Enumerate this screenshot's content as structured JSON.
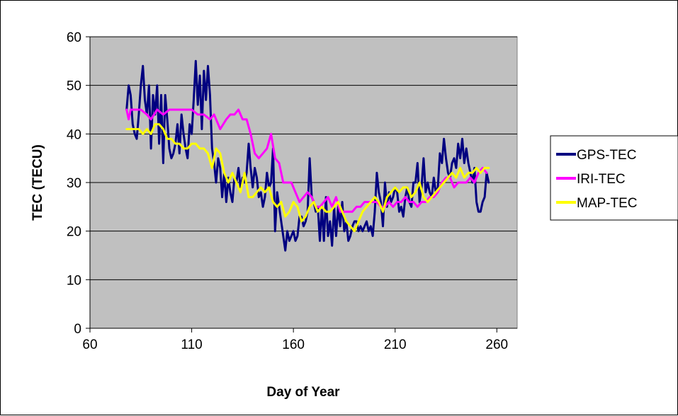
{
  "chart_data": {
    "type": "line",
    "title": "",
    "xlabel": "Day of Year",
    "ylabel": "TEC (TECU)",
    "xlim": [
      60,
      270
    ],
    "ylim": [
      0,
      60
    ],
    "x_ticks": [
      "60",
      "110",
      "160",
      "210",
      "260"
    ],
    "y_ticks": [
      "0",
      "10",
      "20",
      "30",
      "40",
      "50",
      "60"
    ],
    "grid": "horizontal",
    "background": "#c0c0c0",
    "legend_position": "right",
    "series": [
      {
        "name": "GPS-TEC",
        "color": "#000080",
        "x": [
          78,
          79,
          80,
          81,
          82,
          83,
          84,
          85,
          86,
          87,
          88,
          89,
          90,
          91,
          92,
          93,
          94,
          95,
          96,
          97,
          98,
          99,
          100,
          101,
          102,
          103,
          104,
          105,
          106,
          107,
          108,
          109,
          110,
          111,
          112,
          113,
          114,
          115,
          116,
          117,
          118,
          119,
          120,
          121,
          122,
          123,
          124,
          125,
          126,
          127,
          128,
          129,
          130,
          131,
          132,
          133,
          134,
          135,
          136,
          137,
          138,
          139,
          140,
          141,
          142,
          143,
          144,
          145,
          146,
          147,
          148,
          149,
          150,
          151,
          152,
          153,
          154,
          155,
          156,
          157,
          158,
          159,
          160,
          161,
          162,
          163,
          164,
          165,
          166,
          167,
          168,
          169,
          170,
          171,
          172,
          173,
          174,
          175,
          176,
          177,
          178,
          179,
          180,
          181,
          182,
          183,
          184,
          185,
          186,
          187,
          188,
          189,
          190,
          191,
          192,
          193,
          194,
          195,
          196,
          197,
          198,
          199,
          200,
          201,
          202,
          203,
          204,
          205,
          206,
          207,
          208,
          209,
          210,
          211,
          212,
          213,
          214,
          215,
          216,
          217,
          218,
          219,
          220,
          221,
          222,
          223,
          224,
          225,
          226,
          227,
          228,
          229,
          230,
          231,
          232,
          233,
          234,
          235,
          236,
          237,
          238,
          239,
          240,
          241,
          242,
          243,
          244,
          245,
          246,
          247,
          248,
          249,
          250,
          251,
          252,
          253,
          254,
          255,
          256
        ],
        "values": [
          45,
          50,
          48,
          42,
          40,
          39,
          44,
          50,
          54,
          47,
          44,
          50,
          37,
          48,
          44,
          50,
          38,
          48,
          34,
          48,
          43,
          37,
          35,
          36,
          38,
          42,
          36,
          44,
          40,
          37,
          35,
          42,
          40,
          47,
          55,
          46,
          52,
          41,
          53,
          47,
          54,
          48,
          37,
          34,
          30,
          35,
          33,
          27,
          32,
          26,
          31,
          28,
          26,
          31,
          30,
          33,
          29,
          31,
          30,
          32,
          38,
          33,
          29,
          33,
          31,
          27,
          28,
          25,
          27,
          32,
          29,
          30,
          37,
          20,
          28,
          25,
          22,
          19,
          16,
          20,
          18,
          19,
          20,
          18,
          19,
          23,
          23,
          21,
          22,
          24,
          35,
          27,
          26,
          24,
          25,
          18,
          25,
          18,
          27,
          19,
          22,
          17,
          25,
          19,
          25,
          21,
          26,
          20,
          22,
          18,
          19,
          21,
          22,
          22,
          20,
          21,
          20,
          21,
          22,
          20,
          21,
          19,
          24,
          32,
          28,
          26,
          21,
          30,
          25,
          28,
          26,
          27,
          29,
          28,
          24,
          25,
          23,
          27,
          29,
          26,
          25,
          30,
          30,
          34,
          26,
          29,
          35,
          28,
          30,
          28,
          27,
          31,
          28,
          29,
          36,
          34,
          39,
          35,
          32,
          31,
          34,
          35,
          33,
          38,
          35,
          39,
          34,
          37,
          34,
          32,
          30,
          33,
          26,
          24,
          24,
          26,
          27,
          32,
          30
        ]
      },
      {
        "name": "IRI-TEC",
        "color": "#ff00ff",
        "x": [
          78,
          79,
          80,
          82,
          85,
          88,
          90,
          93,
          96,
          99,
          102,
          105,
          108,
          110,
          113,
          116,
          119,
          121,
          124,
          127,
          129,
          131,
          133,
          135,
          137,
          139,
          141,
          143,
          145,
          147,
          149,
          151,
          153,
          155,
          157,
          159,
          161,
          163,
          165,
          167,
          169,
          171,
          173,
          175,
          177,
          179,
          181,
          183,
          185,
          187,
          189,
          191,
          193,
          195,
          197,
          199,
          201,
          203,
          205,
          207,
          209,
          211,
          213,
          215,
          217,
          219,
          221,
          223,
          225,
          227,
          229,
          231,
          233,
          235,
          237,
          239,
          241,
          243,
          245,
          247,
          249,
          251,
          253,
          255
        ],
        "values": [
          45,
          43,
          45,
          45,
          45,
          44,
          43,
          45,
          44,
          45,
          45,
          45,
          45,
          45,
          44,
          44,
          43,
          44,
          41,
          43,
          44,
          44,
          45,
          43,
          43,
          40,
          36,
          35,
          36,
          37,
          40,
          35,
          34,
          30,
          30,
          30,
          28,
          26,
          27,
          28,
          27,
          25,
          25,
          26,
          27,
          25,
          27,
          24,
          24,
          24,
          24,
          25,
          25,
          26,
          26,
          26,
          26,
          25,
          25,
          26,
          25,
          26,
          26,
          27,
          26,
          26,
          25,
          26,
          26,
          27,
          27,
          28,
          30,
          31,
          31,
          29,
          30,
          30,
          30,
          31,
          30,
          32,
          33,
          32
        ]
      },
      {
        "name": "MAP-TEC",
        "color": "#ffff00",
        "x": [
          78,
          80,
          82,
          84,
          86,
          88,
          90,
          92,
          94,
          96,
          98,
          100,
          102,
          104,
          106,
          108,
          110,
          112,
          114,
          116,
          118,
          120,
          122,
          124,
          126,
          128,
          130,
          132,
          134,
          136,
          138,
          140,
          142,
          144,
          146,
          148,
          150,
          152,
          154,
          156,
          158,
          160,
          162,
          164,
          166,
          168,
          170,
          172,
          174,
          176,
          178,
          180,
          182,
          184,
          186,
          188,
          190,
          192,
          194,
          196,
          198,
          200,
          202,
          204,
          206,
          208,
          210,
          212,
          214,
          216,
          218,
          220,
          222,
          224,
          226,
          228,
          230,
          232,
          234,
          236,
          238,
          240,
          242,
          244,
          246,
          248,
          250,
          252,
          254,
          256
        ],
        "values": [
          41,
          41,
          41,
          41,
          40,
          41,
          40,
          42,
          42,
          41,
          39,
          39,
          38,
          38,
          37,
          37,
          38,
          38,
          37,
          37,
          36,
          33,
          37,
          36,
          32,
          30,
          32,
          30,
          28,
          32,
          27,
          27,
          28,
          29,
          28,
          29,
          26,
          25,
          26,
          23,
          24,
          26,
          25,
          22,
          23,
          25,
          26,
          24,
          25,
          24,
          24,
          25,
          26,
          24,
          22,
          21,
          20,
          22,
          24,
          25,
          26,
          27,
          26,
          24,
          27,
          28,
          29,
          28,
          29,
          29,
          27,
          28,
          30,
          27,
          26,
          27,
          28,
          29,
          30,
          31,
          32,
          31,
          33,
          31,
          32,
          32,
          33,
          32,
          33,
          33
        ]
      }
    ]
  }
}
